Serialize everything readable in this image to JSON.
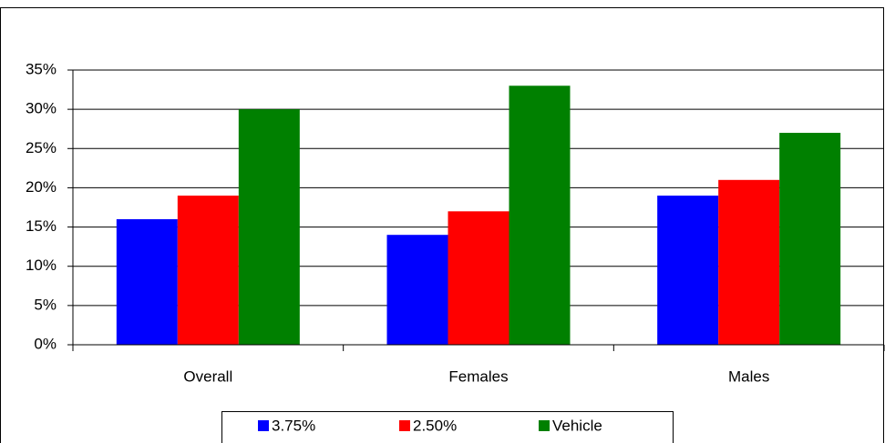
{
  "chart_data": {
    "type": "bar",
    "categories": [
      "Overall",
      "Females",
      "Males"
    ],
    "series": [
      {
        "name": "3.75%",
        "color": "#0000ff",
        "values": [
          16,
          14,
          19
        ]
      },
      {
        "name": "2.50%",
        "color": "#ff0000",
        "values": [
          19,
          17,
          21
        ]
      },
      {
        "name": "Vehicle",
        "color": "#008000",
        "values": [
          30,
          33,
          27
        ]
      }
    ],
    "ylim": [
      0,
      35
    ],
    "yticks": [
      {
        "value": 0,
        "label": "0%"
      },
      {
        "value": 5,
        "label": "5%"
      },
      {
        "value": 10,
        "label": "10%"
      },
      {
        "value": 15,
        "label": "15%"
      },
      {
        "value": 20,
        "label": "20%"
      },
      {
        "value": 25,
        "label": "25%"
      },
      {
        "value": 30,
        "label": "30%"
      },
      {
        "value": 35,
        "label": "35%"
      }
    ],
    "grid": true,
    "legend": "bottom"
  }
}
